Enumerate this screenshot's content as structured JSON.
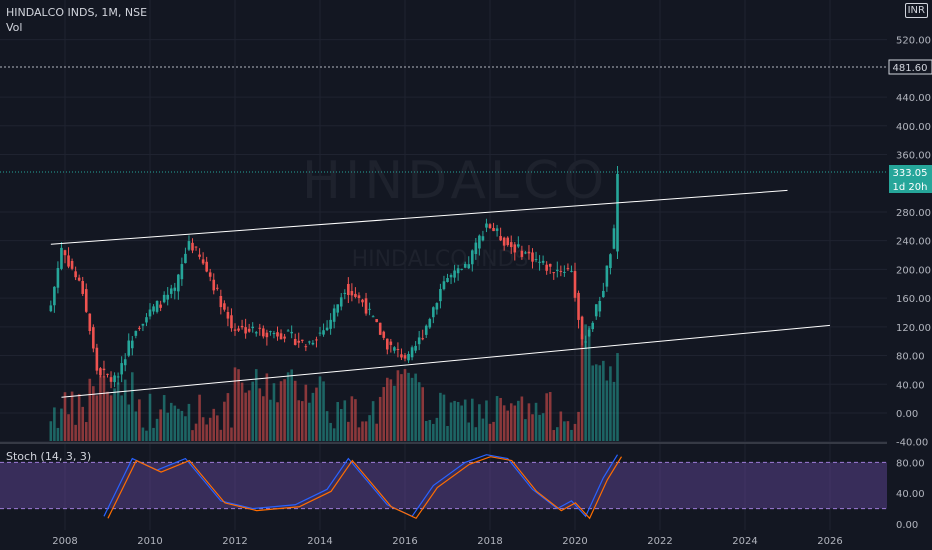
{
  "header": {
    "symbol": "HINDALCO INDS, 1M, NSE",
    "volume_label": "Vol",
    "currency": "INR",
    "watermark_symbol": "HINDALCO",
    "watermark_sub": "HINDALCO INDS"
  },
  "price_axis": {
    "ticks": [
      "520.00",
      "440.00",
      "400.00",
      "360.00",
      "280.00",
      "240.00",
      "200.00",
      "160.00",
      "120.00",
      "80.00",
      "40.00",
      "0.00",
      "-40.00"
    ],
    "horizontal_line_label": "481.60",
    "last_price_label": "333.05",
    "countdown_label": "1d 20h"
  },
  "time_axis": {
    "ticks": [
      "2008",
      "2010",
      "2012",
      "2014",
      "2016",
      "2018",
      "2020",
      "2022",
      "2024",
      "2026"
    ]
  },
  "stoch": {
    "label": "Stoch (14, 3, 3)",
    "ticks": [
      "80.00",
      "40.00",
      "0.00"
    ],
    "band": [
      20,
      80
    ]
  },
  "colors": {
    "background": "#131722",
    "up": "#26a69a",
    "down": "#ef5350",
    "stoch_k": "#2962ff",
    "stoch_d": "#ff6d00",
    "stoch_band": "#7e57c2",
    "trendline": "#ffffff"
  },
  "chart_data": {
    "type": "candlestick",
    "timeframe": "1M",
    "price_keypoints": [
      [
        "2007-09",
        150
      ],
      [
        "2007-12",
        230
      ],
      [
        "2008-03",
        200
      ],
      [
        "2008-06",
        170
      ],
      [
        "2008-10",
        60
      ],
      [
        "2009-03",
        45
      ],
      [
        "2009-09",
        120
      ],
      [
        "2010-03",
        150
      ],
      [
        "2010-08",
        170
      ],
      [
        "2010-12",
        240
      ],
      [
        "2011-06",
        190
      ],
      [
        "2011-12",
        120
      ],
      [
        "2012-06",
        115
      ],
      [
        "2013-03",
        110
      ],
      [
        "2013-09",
        95
      ],
      [
        "2014-03",
        120
      ],
      [
        "2014-08",
        175
      ],
      [
        "2015-01",
        155
      ],
      [
        "2015-08",
        95
      ],
      [
        "2016-02",
        75
      ],
      [
        "2016-06",
        110
      ],
      [
        "2016-12",
        185
      ],
      [
        "2017-06",
        200
      ],
      [
        "2017-12",
        265
      ],
      [
        "2018-06",
        235
      ],
      [
        "2018-12",
        220
      ],
      [
        "2019-06",
        200
      ],
      [
        "2019-12",
        200
      ],
      [
        "2020-03",
        95
      ],
      [
        "2020-06",
        130
      ],
      [
        "2020-09",
        175
      ],
      [
        "2020-12",
        250
      ],
      [
        "2021-01",
        333
      ]
    ],
    "stoch_keypoints": [
      [
        "2008-12",
        10
      ],
      [
        "2009-08",
        85
      ],
      [
        "2010-03",
        70
      ],
      [
        "2010-11",
        85
      ],
      [
        "2011-09",
        30
      ],
      [
        "2012-06",
        20
      ],
      [
        "2013-06",
        25
      ],
      [
        "2014-03",
        45
      ],
      [
        "2014-09",
        85
      ],
      [
        "2015-08",
        25
      ],
      [
        "2016-03",
        10
      ],
      [
        "2016-09",
        50
      ],
      [
        "2017-06",
        80
      ],
      [
        "2017-12",
        90
      ],
      [
        "2018-06",
        85
      ],
      [
        "2019-01",
        45
      ],
      [
        "2019-08",
        20
      ],
      [
        "2019-12",
        30
      ],
      [
        "2020-04",
        10
      ],
      [
        "2020-09",
        60
      ],
      [
        "2021-01",
        90
      ]
    ],
    "trendlines": [
      {
        "name": "upper",
        "from": [
          "2007-09",
          235
        ],
        "to": [
          "2025-01",
          310
        ]
      },
      {
        "name": "lower",
        "from": [
          "2007-12",
          22
        ],
        "to": [
          "2026-01",
          122
        ]
      }
    ],
    "last_price": 333.05,
    "horizontal_line": 481.6
  }
}
